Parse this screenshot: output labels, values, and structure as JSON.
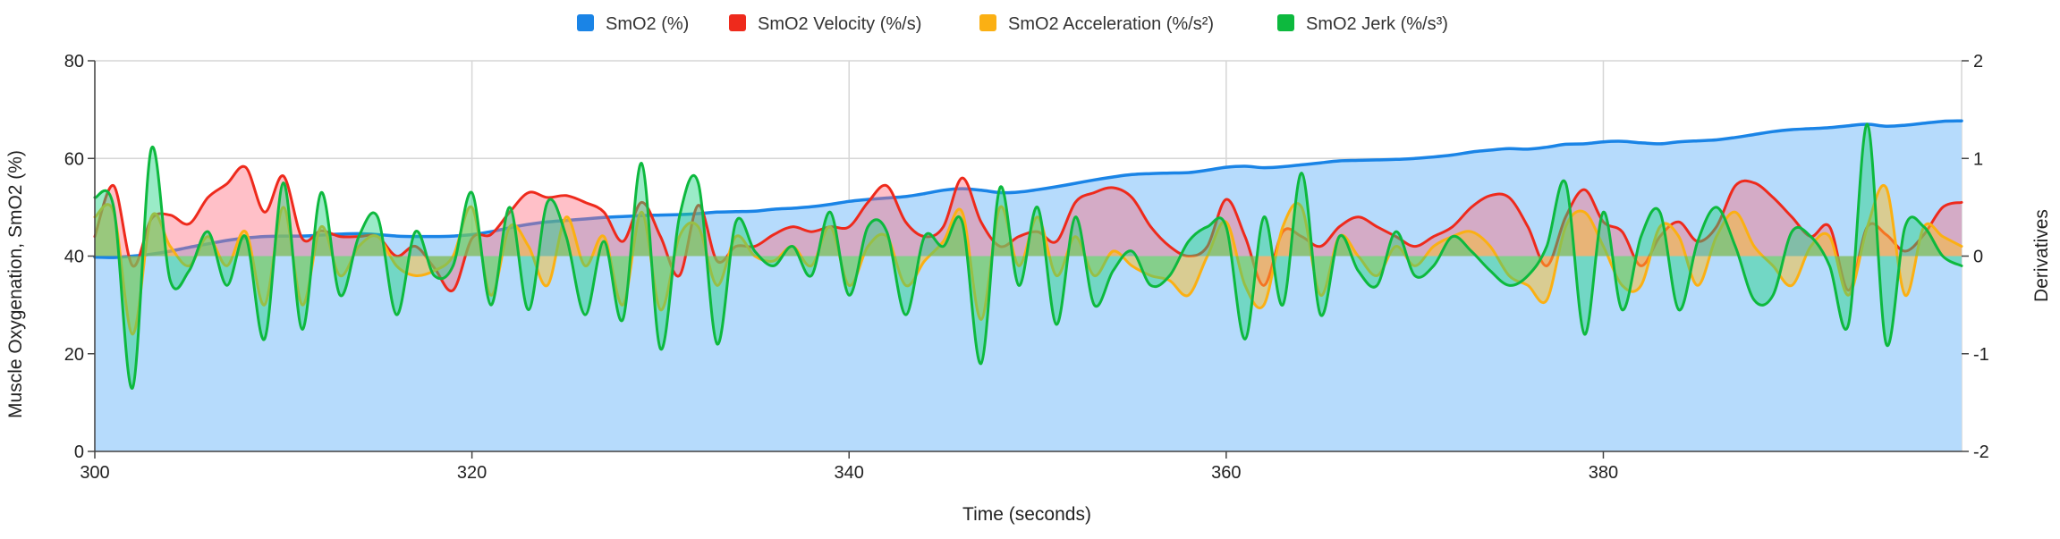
{
  "chart_data": {
    "type": "area",
    "xlabel": "Time (seconds)",
    "ylabel_left": "Muscle Oxygenation, SmO2 (%)",
    "ylabel_right": "Derivatives",
    "x_range": [
      300,
      399
    ],
    "y_left_range": [
      0,
      80
    ],
    "y_right_range": [
      -2,
      2
    ],
    "x_ticks": [
      300,
      320,
      340,
      360,
      380
    ],
    "y_left_ticks": [
      0,
      20,
      40,
      60,
      80
    ],
    "y_right_ticks": [
      -2,
      -1,
      0,
      1,
      2
    ],
    "grid": true,
    "legend_position": "top-center",
    "series": [
      {
        "name": "SmO2 (%)",
        "axis": "left",
        "color": "#1a84e6",
        "fill": "#b6dbfc",
        "x": [
          300,
          301,
          302,
          303,
          304,
          305,
          306,
          307,
          308,
          309,
          310,
          311,
          312,
          313,
          314,
          315,
          316,
          317,
          318,
          319,
          320,
          321,
          322,
          323,
          324,
          325,
          326,
          327,
          328,
          329,
          330,
          331,
          332,
          333,
          334,
          335,
          336,
          337,
          338,
          339,
          340,
          341,
          342,
          343,
          344,
          345,
          346,
          347,
          348,
          349,
          350,
          351,
          352,
          353,
          354,
          355,
          356,
          357,
          358,
          359,
          360,
          361,
          362,
          363,
          364,
          365,
          366,
          367,
          368,
          369,
          370,
          371,
          372,
          373,
          374,
          375,
          376,
          377,
          378,
          379,
          380,
          381,
          382,
          383,
          384,
          385,
          386,
          387,
          388,
          389,
          390,
          391,
          392,
          393,
          394,
          395,
          396,
          397,
          398,
          399
        ],
        "values": [
          39.8,
          39.7,
          40.0,
          40.4,
          41.0,
          41.8,
          42.5,
          43.2,
          43.7,
          44.0,
          44.1,
          44.1,
          44.3,
          44.5,
          44.6,
          44.4,
          44.1,
          44.0,
          44.0,
          44.1,
          44.4,
          45.0,
          45.8,
          46.5,
          47.0,
          47.3,
          47.6,
          47.9,
          48.1,
          48.3,
          48.4,
          48.5,
          48.7,
          49.0,
          49.1,
          49.2,
          49.6,
          49.8,
          50.1,
          50.6,
          51.2,
          51.6,
          51.9,
          52.2,
          52.8,
          53.5,
          53.8,
          53.5,
          53.0,
          53.1,
          53.6,
          54.2,
          54.9,
          55.6,
          56.2,
          56.7,
          56.9,
          57.0,
          57.1,
          57.6,
          58.2,
          58.4,
          58.1,
          58.3,
          58.7,
          59.1,
          59.5,
          59.6,
          59.7,
          59.8,
          60.0,
          60.3,
          60.7,
          61.3,
          61.7,
          62.0,
          61.9,
          62.3,
          62.9,
          63.0,
          63.4,
          63.5,
          63.2,
          63.0,
          63.4,
          63.6,
          63.8,
          64.3,
          64.9,
          65.5,
          65.9,
          66.1,
          66.3,
          66.7,
          67.0,
          66.6,
          66.8,
          67.2,
          67.6,
          67.7
        ]
      },
      {
        "name": "SmO2 Velocity (%/s)",
        "axis": "right",
        "color": "#ee2a1c",
        "fill": "rgba(255,105,125,0.42)",
        "x": [
          300,
          301,
          302,
          303,
          304,
          305,
          306,
          307,
          308,
          309,
          310,
          311,
          312,
          313,
          314,
          315,
          316,
          317,
          318,
          319,
          320,
          321,
          322,
          323,
          324,
          325,
          326,
          327,
          328,
          329,
          330,
          331,
          332,
          333,
          334,
          335,
          336,
          337,
          338,
          339,
          340,
          341,
          342,
          343,
          344,
          345,
          346,
          347,
          348,
          349,
          350,
          351,
          352,
          353,
          354,
          355,
          356,
          357,
          358,
          359,
          360,
          361,
          362,
          363,
          364,
          365,
          366,
          367,
          368,
          369,
          370,
          371,
          372,
          373,
          374,
          375,
          376,
          377,
          378,
          379,
          380,
          381,
          382,
          383,
          384,
          385,
          386,
          387,
          388,
          389,
          390,
          391,
          392,
          393,
          394,
          395,
          396,
          397,
          398,
          399
        ],
        "values": [
          0.2,
          0.72,
          -0.1,
          0.38,
          0.42,
          0.33,
          0.6,
          0.74,
          0.91,
          0.45,
          0.82,
          0.18,
          0.26,
          0.2,
          0.2,
          0.2,
          0.0,
          0.1,
          -0.12,
          -0.35,
          0.18,
          0.22,
          0.45,
          0.65,
          0.6,
          0.62,
          0.55,
          0.45,
          0.15,
          0.55,
          0.2,
          -0.2,
          0.52,
          -0.05,
          0.1,
          0.1,
          0.22,
          0.3,
          0.25,
          0.3,
          0.3,
          0.55,
          0.72,
          0.35,
          0.2,
          0.3,
          0.8,
          0.35,
          0.1,
          0.2,
          0.25,
          0.15,
          0.55,
          0.65,
          0.7,
          0.6,
          0.3,
          0.1,
          0.0,
          0.1,
          0.58,
          0.2,
          -0.3,
          0.25,
          0.2,
          0.1,
          0.3,
          0.4,
          0.3,
          0.2,
          0.1,
          0.2,
          0.3,
          0.5,
          0.62,
          0.6,
          0.3,
          -0.1,
          0.4,
          0.68,
          0.35,
          0.25,
          -0.1,
          0.2,
          0.35,
          0.15,
          0.3,
          0.72,
          0.75,
          0.6,
          0.4,
          0.2,
          0.3,
          -0.35,
          0.3,
          0.22,
          0.05,
          0.22,
          0.5,
          0.55
        ]
      },
      {
        "name": "SmO2 Acceleration (%/s²)",
        "axis": "right",
        "color": "#fbb013",
        "fill": "rgba(252,190,40,0.5)",
        "x": [
          300,
          301,
          302,
          303,
          304,
          305,
          306,
          307,
          308,
          309,
          310,
          311,
          312,
          313,
          314,
          315,
          316,
          317,
          318,
          319,
          320,
          321,
          322,
          323,
          324,
          325,
          326,
          327,
          328,
          329,
          330,
          331,
          332,
          333,
          334,
          335,
          336,
          337,
          338,
          339,
          340,
          341,
          342,
          343,
          344,
          345,
          346,
          347,
          348,
          349,
          350,
          351,
          352,
          353,
          354,
          355,
          356,
          357,
          358,
          359,
          360,
          361,
          362,
          363,
          364,
          365,
          366,
          367,
          368,
          369,
          370,
          371,
          372,
          373,
          374,
          375,
          376,
          377,
          378,
          379,
          380,
          381,
          382,
          383,
          384,
          385,
          386,
          387,
          388,
          389,
          390,
          391,
          392,
          393,
          394,
          395,
          396,
          397,
          398,
          399
        ],
        "values": [
          0.4,
          0.45,
          -0.8,
          0.4,
          0.1,
          -0.1,
          0.2,
          -0.1,
          0.25,
          -0.5,
          0.5,
          -0.5,
          0.3,
          -0.2,
          0.1,
          0.2,
          -0.1,
          -0.2,
          -0.15,
          0.0,
          0.5,
          -0.4,
          0.3,
          0.1,
          -0.3,
          0.4,
          -0.1,
          0.2,
          -0.5,
          0.45,
          -0.55,
          0.2,
          0.3,
          -0.3,
          0.2,
          0.0,
          -0.05,
          0.1,
          -0.1,
          0.3,
          -0.3,
          0.1,
          0.2,
          -0.3,
          -0.05,
          0.15,
          0.45,
          -0.65,
          0.5,
          -0.1,
          0.4,
          -0.2,
          0.2,
          -0.2,
          0.05,
          -0.1,
          -0.2,
          -0.25,
          -0.4,
          0.0,
          0.35,
          -0.3,
          -0.5,
          0.3,
          0.5,
          -0.4,
          0.2,
          0.0,
          -0.2,
          0.1,
          -0.1,
          0.1,
          0.2,
          0.25,
          0.1,
          -0.2,
          -0.3,
          -0.45,
          0.3,
          0.45,
          0.1,
          -0.3,
          -0.3,
          0.3,
          0.2,
          -0.3,
          0.2,
          0.45,
          0.1,
          -0.1,
          -0.3,
          0.1,
          0.2,
          -0.4,
          0.3,
          0.7,
          -0.4,
          0.3,
          0.2,
          0.1
        ]
      },
      {
        "name": "SmO2 Jerk (%/s³)",
        "axis": "right",
        "color": "#0db93e",
        "fill": "rgba(30,210,130,0.45)",
        "x": [
          300,
          301,
          302,
          303,
          304,
          305,
          306,
          307,
          308,
          309,
          310,
          311,
          312,
          313,
          314,
          315,
          316,
          317,
          318,
          319,
          320,
          321,
          322,
          323,
          324,
          325,
          326,
          327,
          328,
          329,
          330,
          331,
          332,
          333,
          334,
          335,
          336,
          337,
          338,
          339,
          340,
          341,
          342,
          343,
          344,
          345,
          346,
          347,
          348,
          349,
          350,
          351,
          352,
          353,
          354,
          355,
          356,
          357,
          358,
          359,
          360,
          361,
          362,
          363,
          364,
          365,
          366,
          367,
          368,
          369,
          370,
          371,
          372,
          373,
          374,
          375,
          376,
          377,
          378,
          379,
          380,
          381,
          382,
          383,
          384,
          385,
          386,
          387,
          388,
          389,
          390,
          391,
          392,
          393,
          394,
          395,
          396,
          397,
          398,
          399
        ],
        "values": [
          0.6,
          0.5,
          -1.35,
          1.1,
          -0.25,
          -0.15,
          0.25,
          -0.3,
          0.2,
          -0.85,
          0.75,
          -0.75,
          0.65,
          -0.4,
          0.2,
          0.4,
          -0.6,
          0.25,
          -0.2,
          -0.1,
          0.65,
          -0.5,
          0.5,
          -0.55,
          0.55,
          0.2,
          -0.6,
          0.15,
          -0.65,
          0.95,
          -0.95,
          0.4,
          0.75,
          -0.9,
          0.35,
          0.05,
          -0.1,
          0.1,
          -0.2,
          0.45,
          -0.4,
          0.3,
          0.25,
          -0.6,
          0.2,
          0.1,
          0.35,
          -1.1,
          0.7,
          -0.3,
          0.5,
          -0.7,
          0.4,
          -0.5,
          -0.15,
          0.05,
          -0.3,
          -0.2,
          0.15,
          0.3,
          0.3,
          -0.85,
          0.4,
          -0.5,
          0.85,
          -0.6,
          0.2,
          -0.15,
          -0.3,
          0.25,
          -0.2,
          -0.1,
          0.2,
          0.05,
          -0.15,
          -0.3,
          -0.2,
          0.1,
          0.75,
          -0.8,
          0.45,
          -0.55,
          0.2,
          0.45,
          -0.55,
          0.15,
          0.5,
          0.1,
          -0.45,
          -0.4,
          0.25,
          0.2,
          -0.1,
          -0.7,
          1.35,
          -0.9,
          0.3,
          0.3,
          0.0,
          -0.1
        ]
      }
    ]
  },
  "legend": [
    {
      "label": "SmO2 (%)",
      "color": "#1a84e6"
    },
    {
      "label": "SmO2 Velocity (%/s)",
      "color": "#ee2a1c"
    },
    {
      "label": "SmO2 Acceleration (%/s²)",
      "color": "#fbb013"
    },
    {
      "label": "SmO2 Jerk (%/s³)",
      "color": "#0db93e"
    }
  ]
}
